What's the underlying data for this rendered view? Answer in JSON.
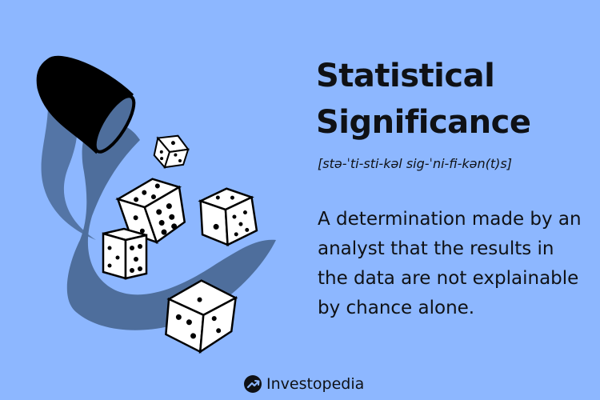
{
  "title": "Statistical Significance",
  "pronunciation": "[stə-ˈti-sti-kəl sig-ˈni-fi-kən(t)s]",
  "definition": "A determination made by an analyst that the results in the data are not explainable by chance alone.",
  "brand": {
    "name": "Investopedia",
    "icon": "investopedia-logo-icon"
  },
  "colors": {
    "background": "#8db7ff",
    "text": "#0f1115",
    "dice_shadow_swoosh": "#4e6e9c",
    "die_face": "#ffffff"
  }
}
